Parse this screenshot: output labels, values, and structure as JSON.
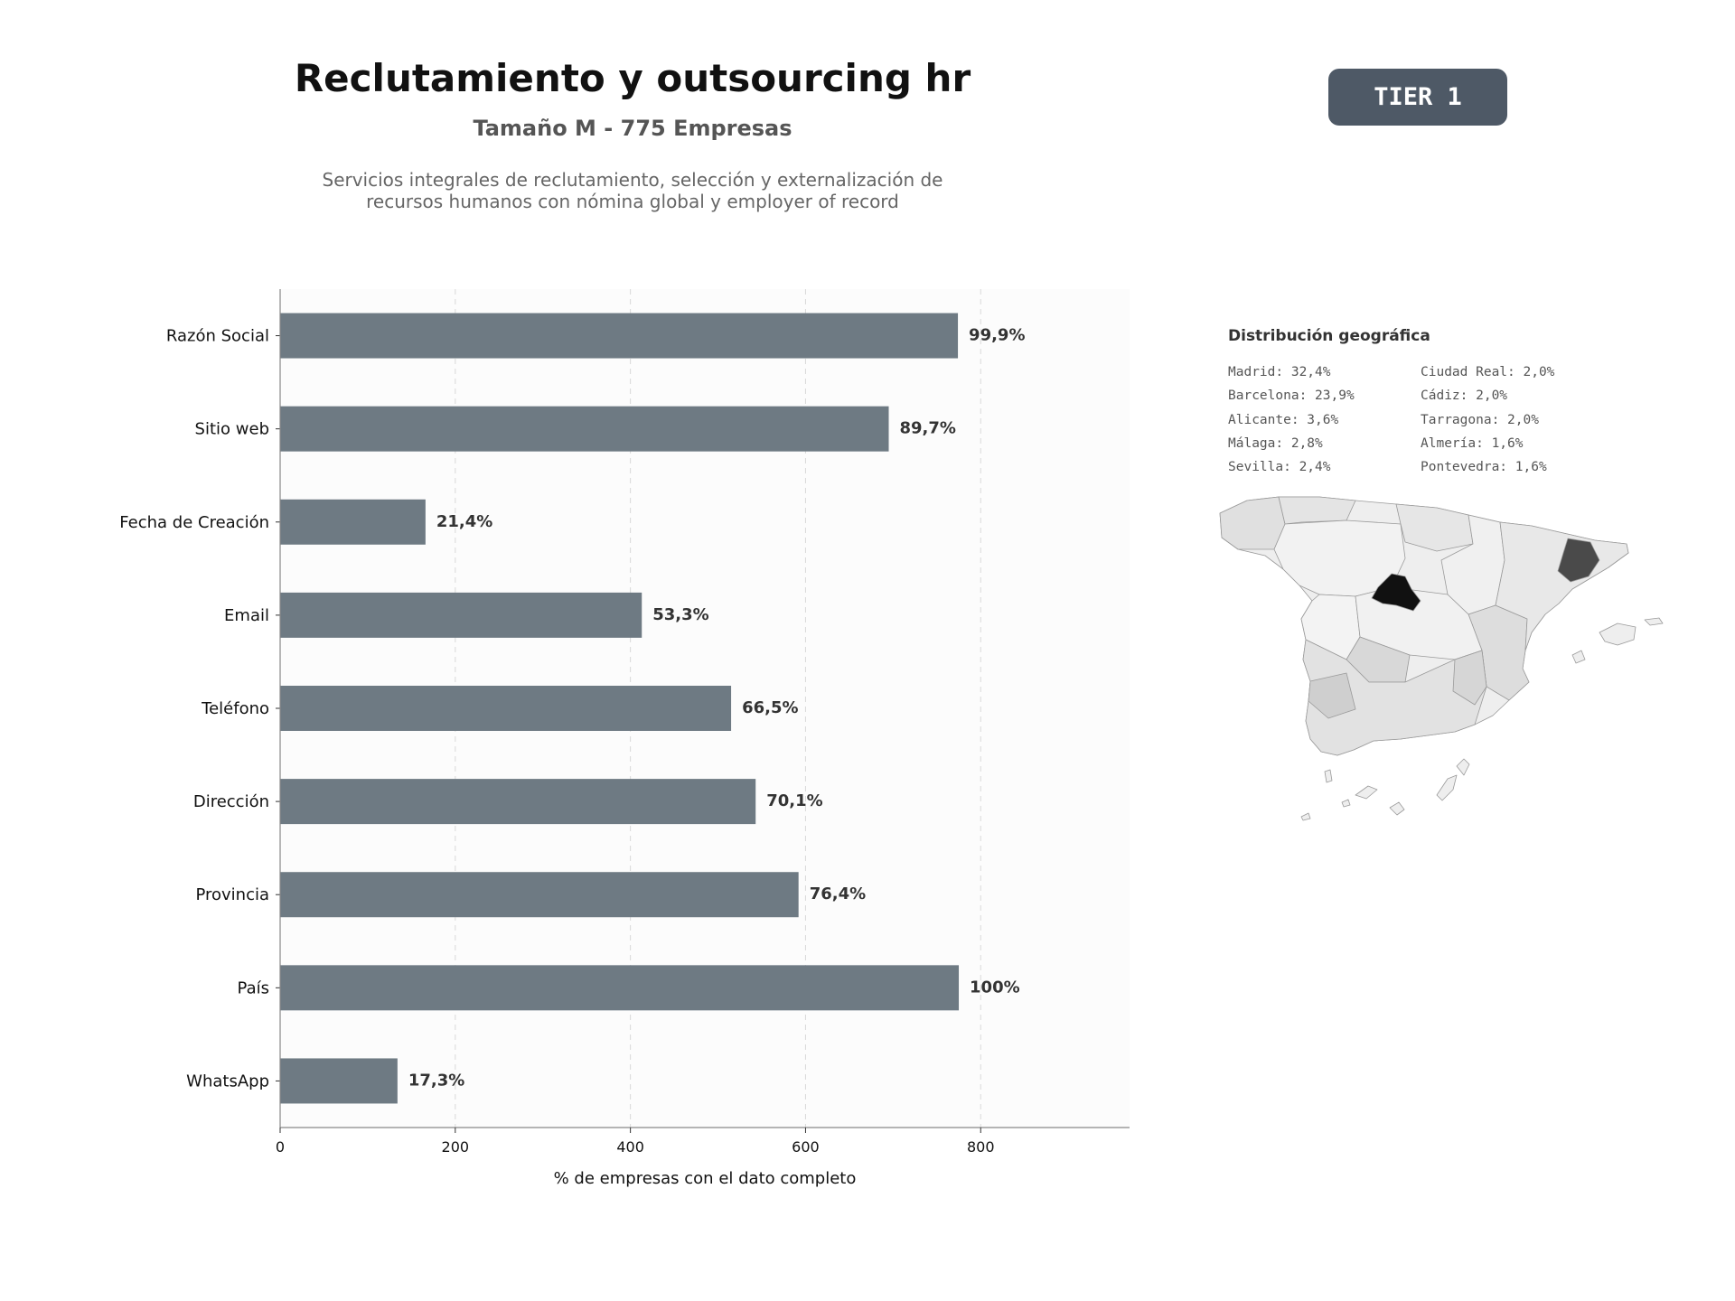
{
  "header": {
    "title": "Reclutamiento y outsourcing hr",
    "subtitle": "Tamaño M - 775 Empresas",
    "description_lines": [
      "Servicios integrales de reclutamiento, selección y externalización de",
      "recursos humanos con nómina global y employer of record"
    ],
    "tier_label": "TIER 1"
  },
  "chart_data": {
    "type": "bar",
    "orientation": "horizontal",
    "title": "",
    "xlabel": "% de empresas con el dato completo",
    "ylabel": "",
    "xlim": [
      0,
      970
    ],
    "x_ticks": [
      0,
      200,
      400,
      600,
      800
    ],
    "grid": "vertical dashed",
    "categories": [
      "Razón Social",
      "Sitio web",
      "Fecha de Creación",
      "Email",
      "Teléfono",
      "Dirección",
      "Provincia",
      "País",
      "WhatsApp"
    ],
    "values": [
      774,
      695,
      166,
      413,
      515,
      543,
      592,
      775,
      134
    ],
    "data_labels": [
      "99,9%",
      "89,7%",
      "21,4%",
      "53,3%",
      "66,5%",
      "70,1%",
      "76,4%",
      "100%",
      "17,3%"
    ],
    "bar_color": "#6e7a83"
  },
  "geo": {
    "title": "Distribución geográfica",
    "columns": [
      [
        "Madrid: 32,4%",
        "Barcelona: 23,9%",
        "Alicante: 3,6%",
        "Málaga: 2,8%",
        "Sevilla: 2,4%"
      ],
      [
        "Ciudad Real: 2,0%",
        "Cádiz: 2,0%",
        "Tarragona: 2,0%",
        "Almería: 1,6%",
        "Pontevedra: 1,6%"
      ]
    ]
  }
}
